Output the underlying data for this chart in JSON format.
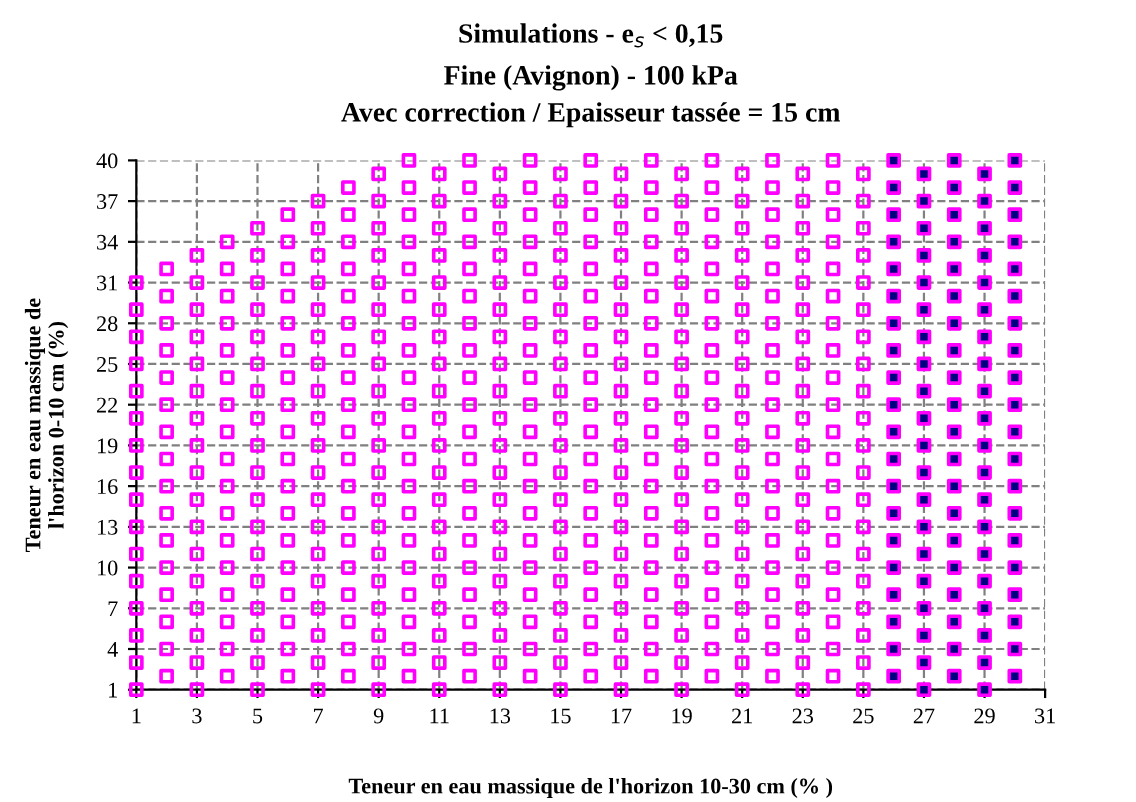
{
  "chart_data": {
    "type": "scatter",
    "title": "Simulations - e$_{s}$ < 0,15",
    "subtitle": "Fine (Avignon) - 100 kPa\nAvec correction / Epaisseur tassée = 15 cm",
    "xlabel": "Teneur en eau massique de l'horizon 10-30 cm (% )",
    "ylabel": "Teneur en eau massique de\nl'horizon 0-10 cm (%)",
    "xlim": [
      1,
      31
    ],
    "ylim": [
      1,
      40
    ],
    "xticks": [
      1,
      3,
      5,
      7,
      9,
      11,
      13,
      15,
      17,
      19,
      21,
      23,
      25,
      27,
      29,
      31
    ],
    "yticks": [
      1,
      4,
      7,
      10,
      13,
      16,
      19,
      22,
      25,
      28,
      31,
      34,
      37,
      40
    ],
    "grid": true,
    "line_style": "dashed",
    "marker": "square",
    "series": [
      {
        "color": "#ff00ff",
        "x": [
          1,
          1,
          1,
          1,
          1,
          1,
          1,
          1,
          1,
          1,
          1,
          1,
          1,
          1,
          1,
          1
        ],
        "values": [
          1,
          3,
          5,
          7,
          9,
          11,
          13,
          15,
          17,
          19,
          21,
          23,
          25,
          27,
          29,
          31
        ]
      },
      {
        "color": "#ff00ff",
        "x": [
          2,
          2,
          2,
          2,
          2,
          2,
          2,
          2,
          2,
          2,
          2,
          2,
          2,
          2,
          2,
          2
        ],
        "values": [
          2,
          4,
          6,
          8,
          10,
          12,
          14,
          16,
          18,
          20,
          22,
          24,
          26,
          28,
          30,
          32
        ]
      },
      {
        "color": "#ff00ff",
        "x": [
          3,
          3,
          3,
          3,
          3,
          3,
          3,
          3,
          3,
          3,
          3,
          3,
          3,
          3,
          3,
          3,
          3
        ],
        "values": [
          1,
          3,
          5,
          7,
          9,
          11,
          13,
          15,
          17,
          19,
          21,
          23,
          25,
          27,
          29,
          31,
          33
        ]
      },
      {
        "color": "#ff00ff",
        "x": [
          4,
          4,
          4,
          4,
          4,
          4,
          4,
          4,
          4,
          4,
          4,
          4,
          4,
          4,
          4,
          4,
          4
        ],
        "values": [
          2,
          4,
          6,
          8,
          10,
          12,
          14,
          16,
          18,
          20,
          22,
          24,
          26,
          28,
          30,
          32,
          34
        ]
      },
      {
        "color": "#ff00ff",
        "x": [
          5,
          5,
          5,
          5,
          5,
          5,
          5,
          5,
          5,
          5,
          5,
          5,
          5,
          5,
          5,
          5,
          5,
          5
        ],
        "values": [
          1,
          3,
          5,
          7,
          9,
          11,
          13,
          15,
          17,
          19,
          21,
          23,
          25,
          27,
          29,
          31,
          33,
          35
        ]
      },
      {
        "color": "#ff00ff",
        "x": [
          6,
          6,
          6,
          6,
          6,
          6,
          6,
          6,
          6,
          6,
          6,
          6,
          6,
          6,
          6,
          6,
          6,
          6
        ],
        "values": [
          2,
          4,
          6,
          8,
          10,
          12,
          14,
          16,
          18,
          20,
          22,
          24,
          26,
          28,
          30,
          32,
          34,
          36
        ]
      },
      {
        "color": "#ff00ff",
        "x": [
          7,
          7,
          7,
          7,
          7,
          7,
          7,
          7,
          7,
          7,
          7,
          7,
          7,
          7,
          7,
          7,
          7,
          7,
          7
        ],
        "values": [
          1,
          3,
          5,
          7,
          9,
          11,
          13,
          15,
          17,
          19,
          21,
          23,
          25,
          27,
          29,
          31,
          33,
          35,
          37
        ]
      },
      {
        "color": "#ff00ff",
        "x": [
          8,
          8,
          8,
          8,
          8,
          8,
          8,
          8,
          8,
          8,
          8,
          8,
          8,
          8,
          8,
          8,
          8,
          8,
          8
        ],
        "values": [
          2,
          4,
          6,
          8,
          10,
          12,
          14,
          16,
          18,
          20,
          22,
          24,
          26,
          28,
          30,
          32,
          34,
          36,
          38
        ]
      },
      {
        "color": "#ff00ff",
        "x": [
          9,
          9,
          9,
          9,
          9,
          9,
          9,
          9,
          9,
          9,
          9,
          9,
          9,
          9,
          9,
          9,
          9,
          9,
          9,
          9
        ],
        "values": [
          1,
          3,
          5,
          7,
          9,
          11,
          13,
          15,
          17,
          19,
          21,
          23,
          25,
          27,
          29,
          31,
          33,
          35,
          37,
          39
        ]
      },
      {
        "color": "#ff00ff",
        "x": [
          10,
          10,
          10,
          10,
          10,
          10,
          10,
          10,
          10,
          10,
          10,
          10,
          10,
          10,
          10,
          10,
          10,
          10,
          10,
          10
        ],
        "values": [
          2,
          4,
          6,
          8,
          10,
          12,
          14,
          16,
          18,
          20,
          22,
          24,
          26,
          28,
          30,
          32,
          34,
          36,
          38,
          40
        ]
      },
      {
        "color": "#ff00ff",
        "x": [
          11,
          11,
          11,
          11,
          11,
          11,
          11,
          11,
          11,
          11,
          11,
          11,
          11,
          11,
          11,
          11,
          11,
          11,
          11,
          11
        ],
        "values": [
          1,
          3,
          5,
          7,
          9,
          11,
          13,
          15,
          17,
          19,
          21,
          23,
          25,
          27,
          29,
          31,
          33,
          35,
          37,
          39
        ]
      },
      {
        "color": "#ff00ff",
        "x": [
          12,
          12,
          12,
          12,
          12,
          12,
          12,
          12,
          12,
          12,
          12,
          12,
          12,
          12,
          12,
          12,
          12,
          12,
          12,
          12
        ],
        "values": [
          2,
          4,
          6,
          8,
          10,
          12,
          14,
          16,
          18,
          20,
          22,
          24,
          26,
          28,
          30,
          32,
          34,
          36,
          38,
          40
        ]
      },
      {
        "color": "#ff00ff",
        "x": [
          13,
          13,
          13,
          13,
          13,
          13,
          13,
          13,
          13,
          13,
          13,
          13,
          13,
          13,
          13,
          13,
          13,
          13,
          13,
          13
        ],
        "values": [
          1,
          3,
          5,
          7,
          9,
          11,
          13,
          15,
          17,
          19,
          21,
          23,
          25,
          27,
          29,
          31,
          33,
          35,
          37,
          39
        ]
      },
      {
        "color": "#ff00ff",
        "x": [
          14,
          14,
          14,
          14,
          14,
          14,
          14,
          14,
          14,
          14,
          14,
          14,
          14,
          14,
          14,
          14,
          14,
          14,
          14,
          14
        ],
        "values": [
          2,
          4,
          6,
          8,
          10,
          12,
          14,
          16,
          18,
          20,
          22,
          24,
          26,
          28,
          30,
          32,
          34,
          36,
          38,
          40
        ]
      },
      {
        "color": "#ff00ff",
        "x": [
          15,
          15,
          15,
          15,
          15,
          15,
          15,
          15,
          15,
          15,
          15,
          15,
          15,
          15,
          15,
          15,
          15,
          15,
          15,
          15
        ],
        "values": [
          1,
          3,
          5,
          7,
          9,
          11,
          13,
          15,
          17,
          19,
          21,
          23,
          25,
          27,
          29,
          31,
          33,
          35,
          37,
          39
        ]
      },
      {
        "color": "#ff00ff",
        "x": [
          16,
          16,
          16,
          16,
          16,
          16,
          16,
          16,
          16,
          16,
          16,
          16,
          16,
          16,
          16,
          16,
          16,
          16,
          16,
          16
        ],
        "values": [
          2,
          4,
          6,
          8,
          10,
          12,
          14,
          16,
          18,
          20,
          22,
          24,
          26,
          28,
          30,
          32,
          34,
          36,
          38,
          40
        ]
      },
      {
        "color": "#ff00ff",
        "x": [
          17,
          17,
          17,
          17,
          17,
          17,
          17,
          17,
          17,
          17,
          17,
          17,
          17,
          17,
          17,
          17,
          17,
          17,
          17,
          17
        ],
        "values": [
          1,
          3,
          5,
          7,
          9,
          11,
          13,
          15,
          17,
          19,
          21,
          23,
          25,
          27,
          29,
          31,
          33,
          35,
          37,
          39
        ]
      },
      {
        "color": "#ff00ff",
        "x": [
          18,
          18,
          18,
          18,
          18,
          18,
          18,
          18,
          18,
          18,
          18,
          18,
          18,
          18,
          18,
          18,
          18,
          18,
          18,
          18
        ],
        "values": [
          2,
          4,
          6,
          8,
          10,
          12,
          14,
          16,
          18,
          20,
          22,
          24,
          26,
          28,
          30,
          32,
          34,
          36,
          38,
          40
        ]
      },
      {
        "color": "#ff00ff",
        "x": [
          19,
          19,
          19,
          19,
          19,
          19,
          19,
          19,
          19,
          19,
          19,
          19,
          19,
          19,
          19,
          19,
          19,
          19,
          19,
          19
        ],
        "values": [
          1,
          3,
          5,
          7,
          9,
          11,
          13,
          15,
          17,
          19,
          21,
          23,
          25,
          27,
          29,
          31,
          33,
          35,
          37,
          39
        ]
      },
      {
        "color": "#ff00ff",
        "x": [
          20,
          20,
          20,
          20,
          20,
          20,
          20,
          20,
          20,
          20,
          20,
          20,
          20,
          20,
          20,
          20,
          20,
          20,
          20,
          20
        ],
        "values": [
          2,
          4,
          6,
          8,
          10,
          12,
          14,
          16,
          18,
          20,
          22,
          24,
          26,
          28,
          30,
          32,
          34,
          36,
          38,
          40
        ]
      },
      {
        "color": "#ff00ff",
        "x": [
          21,
          21,
          21,
          21,
          21,
          21,
          21,
          21,
          21,
          21,
          21,
          21,
          21,
          21,
          21,
          21,
          21,
          21,
          21,
          21
        ],
        "values": [
          1,
          3,
          5,
          7,
          9,
          11,
          13,
          15,
          17,
          19,
          21,
          23,
          25,
          27,
          29,
          31,
          33,
          35,
          37,
          39
        ]
      },
      {
        "color": "#ff00ff",
        "x": [
          22,
          22,
          22,
          22,
          22,
          22,
          22,
          22,
          22,
          22,
          22,
          22,
          22,
          22,
          22,
          22,
          22,
          22,
          22,
          22
        ],
        "values": [
          2,
          4,
          6,
          8,
          10,
          12,
          14,
          16,
          18,
          20,
          22,
          24,
          26,
          28,
          30,
          32,
          34,
          36,
          38,
          40
        ]
      },
      {
        "color": "#ff00ff",
        "x": [
          23,
          23,
          23,
          23,
          23,
          23,
          23,
          23,
          23,
          23,
          23,
          23,
          23,
          23,
          23,
          23,
          23,
          23,
          23,
          23
        ],
        "values": [
          1,
          3,
          5,
          7,
          9,
          11,
          13,
          15,
          17,
          19,
          21,
          23,
          25,
          27,
          29,
          31,
          33,
          35,
          37,
          39
        ]
      },
      {
        "color": "#ff00ff",
        "x": [
          24,
          24,
          24,
          24,
          24,
          24,
          24,
          24,
          24,
          24,
          24,
          24,
          24,
          24,
          24,
          24,
          24,
          24,
          24,
          24
        ],
        "values": [
          2,
          4,
          6,
          8,
          10,
          12,
          14,
          16,
          18,
          20,
          22,
          24,
          26,
          28,
          30,
          32,
          34,
          36,
          38,
          40
        ]
      },
      {
        "color": "#ff00ff",
        "x": [
          25,
          25,
          25,
          25,
          25,
          25,
          25,
          25,
          25,
          25,
          25,
          25,
          25,
          25,
          25,
          25,
          25,
          25,
          25,
          25
        ],
        "values": [
          1,
          3,
          5,
          7,
          9,
          11,
          13,
          15,
          17,
          19,
          21,
          23,
          25,
          27,
          29,
          31,
          33,
          35,
          37,
          39
        ]
      },
      {
        "color": "#000080",
        "x": [
          26,
          26,
          26,
          26,
          26,
          26,
          26,
          26,
          26,
          26,
          26,
          26,
          26,
          26,
          26,
          26,
          26,
          26,
          26,
          26
        ],
        "values": [
          2,
          4,
          6,
          8,
          10,
          12,
          14,
          16,
          18,
          20,
          22,
          24,
          26,
          28,
          30,
          32,
          34,
          36,
          38,
          40
        ]
      },
      {
        "color": "#000080",
        "x": [
          27,
          27,
          27,
          27,
          27,
          27,
          27,
          27,
          27,
          27,
          27,
          27,
          27,
          27,
          27,
          27,
          27,
          27,
          27,
          27
        ],
        "values": [
          1,
          3,
          5,
          7,
          9,
          11,
          13,
          15,
          17,
          19,
          21,
          23,
          25,
          27,
          29,
          31,
          33,
          35,
          37,
          39
        ]
      },
      {
        "color": "#000080",
        "x": [
          28,
          28,
          28,
          28,
          28,
          28,
          28,
          28,
          28,
          28,
          28,
          28,
          28,
          28,
          28,
          28,
          28,
          28,
          28,
          28
        ],
        "values": [
          2,
          4,
          6,
          8,
          10,
          12,
          14,
          16,
          18,
          20,
          22,
          24,
          26,
          28,
          30,
          32,
          34,
          36,
          38,
          40
        ]
      },
      {
        "color": "#000080",
        "x": [
          29,
          29,
          29,
          29,
          29,
          29,
          29,
          29,
          29,
          29,
          29,
          29,
          29,
          29,
          29,
          29,
          29,
          29,
          29,
          29
        ],
        "values": [
          1,
          3,
          5,
          7,
          9,
          11,
          13,
          15,
          17,
          19,
          21,
          23,
          25,
          27,
          29,
          31,
          33,
          35,
          37,
          39
        ]
      },
      {
        "color": "#000080",
        "x": [
          30,
          30,
          30,
          30,
          30,
          30,
          30,
          30,
          30,
          30,
          30,
          30,
          30,
          30,
          30,
          30,
          30,
          30,
          30,
          30
        ],
        "values": [
          2,
          4,
          6,
          8,
          10,
          12,
          14,
          16,
          18,
          20,
          22,
          24,
          26,
          28,
          30,
          32,
          34,
          36,
          38,
          40
        ]
      }
    ]
  }
}
